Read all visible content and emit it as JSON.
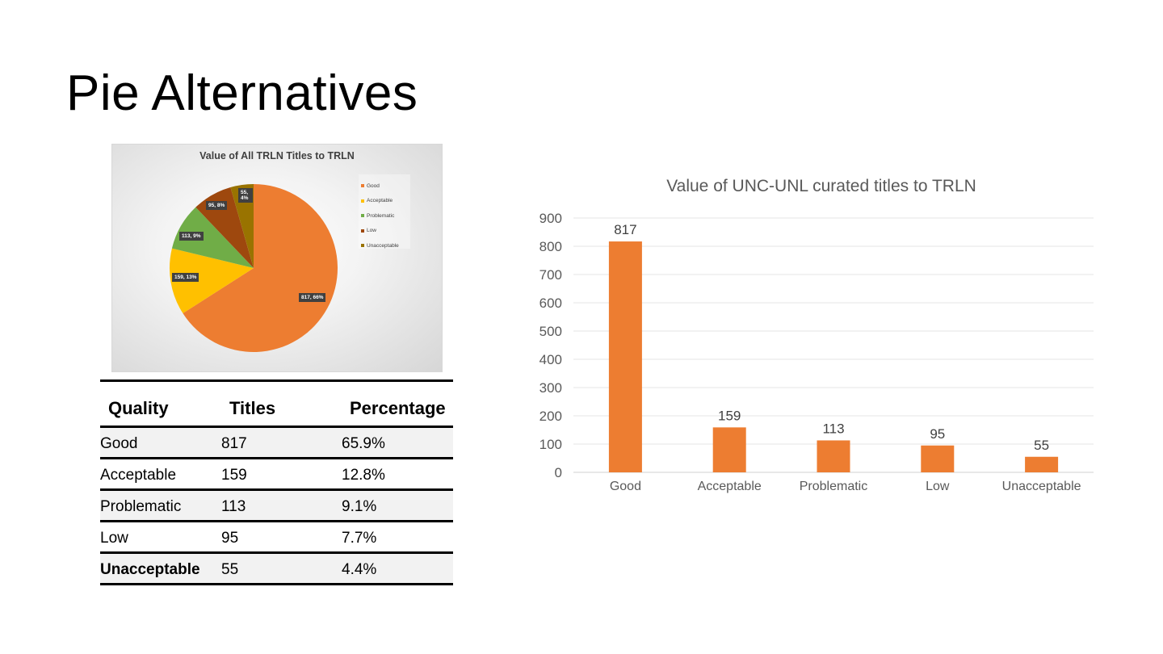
{
  "slide": {
    "title": "Pie Alternatives"
  },
  "pie": {
    "title": "Value of All TRLN Titles to TRLN",
    "legend": [
      "Good",
      "Acceptable",
      "Problematic",
      "Low",
      "Unacceptable"
    ],
    "labels": [
      "817, 66%",
      "159, 13%",
      "113, 9%",
      "95, 8%",
      "55, 4%"
    ]
  },
  "table": {
    "headers": [
      "Quality",
      "Titles",
      "Percentage"
    ],
    "rows": [
      [
        "Good",
        "817",
        "65.9%"
      ],
      [
        "Acceptable",
        "159",
        "12.8%"
      ],
      [
        "Problematic",
        "113",
        "9.1%"
      ],
      [
        "Low",
        "95",
        "7.7%"
      ],
      [
        "Unacceptable",
        "55",
        "4.4%"
      ]
    ]
  },
  "chart_data": [
    {
      "type": "pie",
      "title": "Value of All TRLN Titles to TRLN",
      "categories": [
        "Good",
        "Acceptable",
        "Problematic",
        "Low",
        "Unacceptable"
      ],
      "values": [
        817,
        159,
        113,
        95,
        55
      ],
      "percentages": [
        66,
        13,
        9,
        8,
        4
      ],
      "colors": [
        "#ed7d31",
        "#ffc000",
        "#70ad47",
        "#9e480e",
        "#997300"
      ],
      "legend": "right"
    },
    {
      "type": "bar",
      "title": "Value of UNC-UNL curated titles to TRLN",
      "categories": [
        "Good",
        "Acceptable",
        "Problematic",
        "Low",
        "Unacceptable"
      ],
      "values": [
        817,
        159,
        113,
        95,
        55
      ],
      "ylim": [
        0,
        900
      ],
      "yticks": [
        0,
        100,
        200,
        300,
        400,
        500,
        600,
        700,
        800,
        900
      ],
      "grid": true,
      "bar_color": "#ed7d31",
      "data_labels": true
    }
  ]
}
